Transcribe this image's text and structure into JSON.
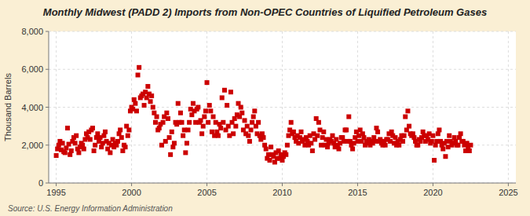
{
  "chart_data": {
    "type": "scatter",
    "title": "Monthly Midwest (PADD 2) Imports from Non-OPEC Countries of Liquified Petroleum Gases",
    "ylabel": "Thousand Barrels",
    "source": "Source: U.S. Energy Information Administration",
    "color": "#cc0000",
    "marker": "square",
    "grid": true,
    "xlim": [
      1994.5,
      2025.5
    ],
    "ylim": [
      0,
      8000
    ],
    "xticks": [
      1995,
      2000,
      2005,
      2010,
      2015,
      2020,
      2025
    ],
    "yticks": [
      0,
      {
        "value": 2000,
        "label": "2,000"
      },
      {
        "value": 4000,
        "label": "4,000"
      },
      {
        "value": 6000,
        "label": "6,000"
      },
      {
        "value": 8000,
        "label": "8,000"
      }
    ],
    "x": [
      1995.0,
      1995.083,
      1995.167,
      1995.25,
      1995.333,
      1995.417,
      1995.5,
      1995.583,
      1995.667,
      1995.75,
      1995.833,
      1995.917,
      1996.0,
      1996.083,
      1996.167,
      1996.25,
      1996.333,
      1996.417,
      1996.5,
      1996.583,
      1996.667,
      1996.75,
      1996.833,
      1996.917,
      1997.0,
      1997.083,
      1997.167,
      1997.25,
      1997.333,
      1997.417,
      1997.5,
      1997.583,
      1997.667,
      1997.75,
      1997.833,
      1997.917,
      1998.0,
      1998.083,
      1998.167,
      1998.25,
      1998.333,
      1998.417,
      1998.5,
      1998.583,
      1998.667,
      1998.75,
      1998.833,
      1998.917,
      1999.0,
      1999.083,
      1999.167,
      1999.25,
      1999.333,
      1999.417,
      1999.5,
      1999.583,
      1999.667,
      1999.75,
      1999.833,
      1999.917,
      2000.0,
      2000.083,
      2000.167,
      2000.25,
      2000.333,
      2000.417,
      2000.5,
      2000.583,
      2000.667,
      2000.75,
      2000.833,
      2000.917,
      2001.0,
      2001.083,
      2001.167,
      2001.25,
      2001.333,
      2001.417,
      2001.5,
      2001.583,
      2001.667,
      2001.75,
      2001.833,
      2001.917,
      2002.0,
      2002.083,
      2002.167,
      2002.25,
      2002.333,
      2002.417,
      2002.5,
      2002.583,
      2002.667,
      2002.75,
      2002.833,
      2002.917,
      2003.0,
      2003.083,
      2003.167,
      2003.25,
      2003.333,
      2003.417,
      2003.5,
      2003.583,
      2003.667,
      2003.75,
      2003.833,
      2003.917,
      2004.0,
      2004.083,
      2004.167,
      2004.25,
      2004.333,
      2004.417,
      2004.5,
      2004.583,
      2004.667,
      2004.75,
      2004.833,
      2004.917,
      2005.0,
      2005.083,
      2005.167,
      2005.25,
      2005.333,
      2005.417,
      2005.5,
      2005.583,
      2005.667,
      2005.75,
      2005.833,
      2005.917,
      2006.0,
      2006.083,
      2006.167,
      2006.25,
      2006.333,
      2006.417,
      2006.5,
      2006.583,
      2006.667,
      2006.75,
      2006.833,
      2006.917,
      2007.0,
      2007.083,
      2007.167,
      2007.25,
      2007.333,
      2007.417,
      2007.5,
      2007.583,
      2007.667,
      2007.75,
      2007.833,
      2007.917,
      2008.0,
      2008.083,
      2008.167,
      2008.25,
      2008.333,
      2008.417,
      2008.5,
      2008.583,
      2008.667,
      2008.75,
      2008.833,
      2008.917,
      2009.0,
      2009.083,
      2009.167,
      2009.25,
      2009.333,
      2009.417,
      2009.5,
      2009.583,
      2009.667,
      2009.75,
      2009.833,
      2009.917,
      2010.0,
      2010.083,
      2010.167,
      2010.25,
      2010.333,
      2010.417,
      2010.5,
      2010.583,
      2010.667,
      2010.75,
      2010.833,
      2010.917,
      2011.0,
      2011.083,
      2011.167,
      2011.25,
      2011.333,
      2011.417,
      2011.5,
      2011.583,
      2011.667,
      2011.75,
      2011.833,
      2011.917,
      2012.0,
      2012.083,
      2012.167,
      2012.25,
      2012.333,
      2012.417,
      2012.5,
      2012.583,
      2012.667,
      2012.75,
      2012.833,
      2012.917,
      2013.0,
      2013.083,
      2013.167,
      2013.25,
      2013.333,
      2013.417,
      2013.5,
      2013.583,
      2013.667,
      2013.75,
      2013.833,
      2013.917,
      2014.0,
      2014.083,
      2014.167,
      2014.25,
      2014.333,
      2014.417,
      2014.5,
      2014.583,
      2014.667,
      2014.75,
      2014.833,
      2014.917,
      2015.0,
      2015.083,
      2015.167,
      2015.25,
      2015.333,
      2015.417,
      2015.5,
      2015.583,
      2015.667,
      2015.75,
      2015.833,
      2015.917,
      2016.0,
      2016.083,
      2016.167,
      2016.25,
      2016.333,
      2016.417,
      2016.5,
      2016.583,
      2016.667,
      2016.75,
      2016.833,
      2016.917,
      2017.0,
      2017.083,
      2017.167,
      2017.25,
      2017.333,
      2017.417,
      2017.5,
      2017.583,
      2017.667,
      2017.75,
      2017.833,
      2017.917,
      2018.0,
      2018.083,
      2018.167,
      2018.25,
      2018.333,
      2018.417,
      2018.5,
      2018.583,
      2018.667,
      2018.75,
      2018.833,
      2018.917,
      2019.0,
      2019.083,
      2019.167,
      2019.25,
      2019.333,
      2019.417,
      2019.5,
      2019.583,
      2019.667,
      2019.75,
      2019.833,
      2019.917,
      2020.0,
      2020.083,
      2020.167,
      2020.25,
      2020.333,
      2020.417,
      2020.5,
      2020.583,
      2020.667,
      2020.75,
      2020.833,
      2020.917,
      2021.0,
      2021.083,
      2021.167,
      2021.25,
      2021.333,
      2021.417,
      2021.5,
      2021.583,
      2021.667,
      2021.75,
      2021.833,
      2021.917,
      2022.0,
      2022.083,
      2022.167,
      2022.25,
      2022.333,
      2022.417,
      2022.5
    ],
    "values": [
      1450,
      1800,
      2000,
      2200,
      1750,
      2100,
      1650,
      1600,
      1850,
      2900,
      2050,
      1500,
      1700,
      2200,
      2400,
      2100,
      2500,
      1800,
      1600,
      1900,
      2100,
      2000,
      1800,
      2300,
      2600,
      2400,
      2700,
      2300,
      2800,
      2900,
      1700,
      2000,
      2400,
      2600,
      2200,
      2400,
      1900,
      2100,
      2500,
      2700,
      2200,
      1800,
      2100,
      1600,
      2000,
      2300,
      1900,
      2100,
      2000,
      2200,
      2600,
      2800,
      2400,
      1700,
      2000,
      1900,
      3000,
      2500,
      2800,
      3800,
      4000,
      3900,
      4400,
      4200,
      3800,
      5700,
      6100,
      4500,
      4600,
      4700,
      4100,
      4800,
      4500,
      5100,
      4700,
      4300,
      4600,
      4000,
      3700,
      3200,
      3500,
      2800,
      2900,
      3100,
      2000,
      3200,
      3500,
      2200,
      3700,
      3400,
      2400,
      1500,
      2700,
      1900,
      2100,
      3200,
      3100,
      4200,
      3200,
      3700,
      3200,
      2500,
      2800,
      1600,
      2100,
      2800,
      3200,
      3900,
      3600,
      4200,
      3800,
      3200,
      3900,
      4000,
      3200,
      3300,
      2600,
      3000,
      3500,
      3800,
      5300,
      3200,
      4100,
      3800,
      2700,
      3500,
      2500,
      3200,
      2700,
      2500,
      3100,
      2900,
      4500,
      3200,
      4900,
      2800,
      4100,
      3000,
      2500,
      4800,
      3200,
      2600,
      3400,
      3000,
      3600,
      4200,
      3500,
      4000,
      3700,
      2800,
      3300,
      2600,
      3000,
      2500,
      2200,
      2800,
      3200,
      3500,
      3800,
      3000,
      2600,
      3200,
      2500,
      2300,
      2600,
      2400,
      2000,
      1800,
      1300,
      1500,
      1200,
      1900,
      1500,
      1400,
      1100,
      1600,
      1300,
      1700,
      1300,
      1500,
      1200,
      1400,
      1600,
      1500,
      2000,
      2500,
      2800,
      3200,
      2600,
      2700,
      2400,
      2200,
      2500,
      2100,
      2400,
      2700,
      2200,
      2300,
      2000,
      2400,
      2200,
      2000,
      2500,
      2100,
      1700,
      2600,
      2300,
      3400,
      2500,
      3200,
      2800,
      2000,
      2400,
      2700,
      2000,
      2300,
      1900,
      2100,
      2300,
      2200,
      2500,
      2100,
      1900,
      2300,
      2000,
      1800,
      2100,
      2400,
      2400,
      2200,
      2800,
      2800,
      2200,
      3500,
      2200,
      2000,
      1800,
      2100,
      2400,
      2700,
      2200,
      2500,
      2800,
      2200,
      2600,
      2400,
      2000,
      2200,
      2100,
      2300,
      2000,
      2200,
      2100,
      2400,
      2200,
      2900,
      2700,
      2200,
      2300,
      2100,
      2000,
      2200,
      2000,
      2300,
      2300,
      2600,
      2200,
      2700,
      2500,
      2100,
      2400,
      2000,
      2200,
      2000,
      2300,
      2500,
      2200,
      2500,
      3500,
      2800,
      3800,
      3000,
      2600,
      2500,
      2600,
      2400,
      2200,
      2000,
      2000,
      2300,
      2200,
      2400,
      2700,
      2500,
      2200,
      2500,
      2300,
      2600,
      2100,
      2200,
      2500,
      1200,
      2000,
      2200,
      2600,
      2800,
      2200,
      2000,
      1800,
      2100,
      1400,
      2200,
      1900,
      2500,
      2200,
      2000,
      2100,
      2400,
      2200,
      2000,
      2000,
      2400,
      2600,
      2200,
      2200,
      2000,
      1700,
      2100,
      1900,
      1700,
      2000
    ]
  }
}
